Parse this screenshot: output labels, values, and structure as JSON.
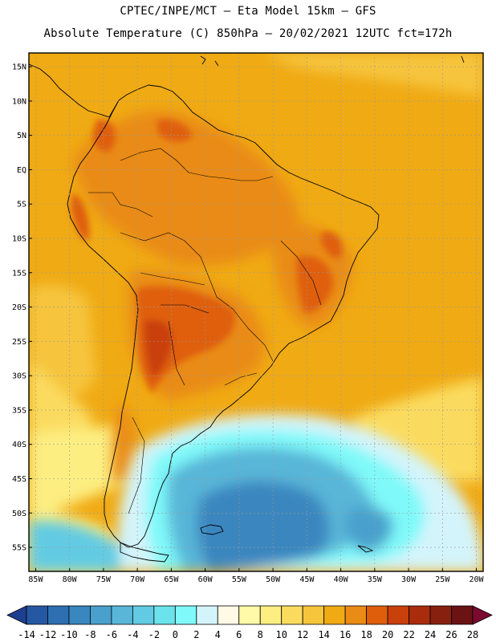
{
  "header": {
    "line1": "CPTEC/INPE/MCT –  Eta Model 15km – GFS",
    "line2": "Absolute Temperature (C) 850hPa – 20/02/2021 12UTC fct=172h"
  },
  "map": {
    "lon_range": [
      -86,
      -19
    ],
    "lat_range": [
      -58.5,
      17
    ],
    "lat_labels": [
      "15N",
      "10N",
      "5N",
      "EQ",
      "5S",
      "10S",
      "15S",
      "20S",
      "25S",
      "30S",
      "35S",
      "40S",
      "45S",
      "50S",
      "55S"
    ],
    "lat_values": [
      15,
      10,
      5,
      0,
      -5,
      -10,
      -15,
      -20,
      -25,
      -30,
      -35,
      -40,
      -45,
      -50,
      -55
    ],
    "lon_labels": [
      "85W",
      "80W",
      "75W",
      "70W",
      "65W",
      "60W",
      "55W",
      "50W",
      "45W",
      "40W",
      "35W",
      "30W",
      "25W",
      "20W"
    ],
    "lon_values": [
      -85,
      -80,
      -75,
      -70,
      -65,
      -60,
      -55,
      -50,
      -45,
      -40,
      -35,
      -30,
      -25,
      -20
    ],
    "grid": true
  },
  "colorbar": {
    "labels": [
      "-14",
      "-12",
      "-10",
      "-8",
      "-6",
      "-4",
      "-2",
      "0",
      "2",
      "4",
      "6",
      "8",
      "10",
      "12",
      "14",
      "16",
      "18",
      "20",
      "22",
      "24",
      "26",
      "28"
    ],
    "colors": [
      "#1e3f8f",
      "#2657a3",
      "#2e6fb2",
      "#3a86bf",
      "#4aa0cc",
      "#59b6d8",
      "#62cbe3",
      "#6ce3ec",
      "#7ff9f9",
      "#d4f4fb",
      "#fffae6",
      "#fffaa8",
      "#fdee82",
      "#fbdb5e",
      "#f6c53c",
      "#f0aa14",
      "#e98b14",
      "#df5e0c",
      "#c9400b",
      "#a92c0c",
      "#88200f",
      "#6b1214",
      "#7a0a2e"
    ]
  }
}
